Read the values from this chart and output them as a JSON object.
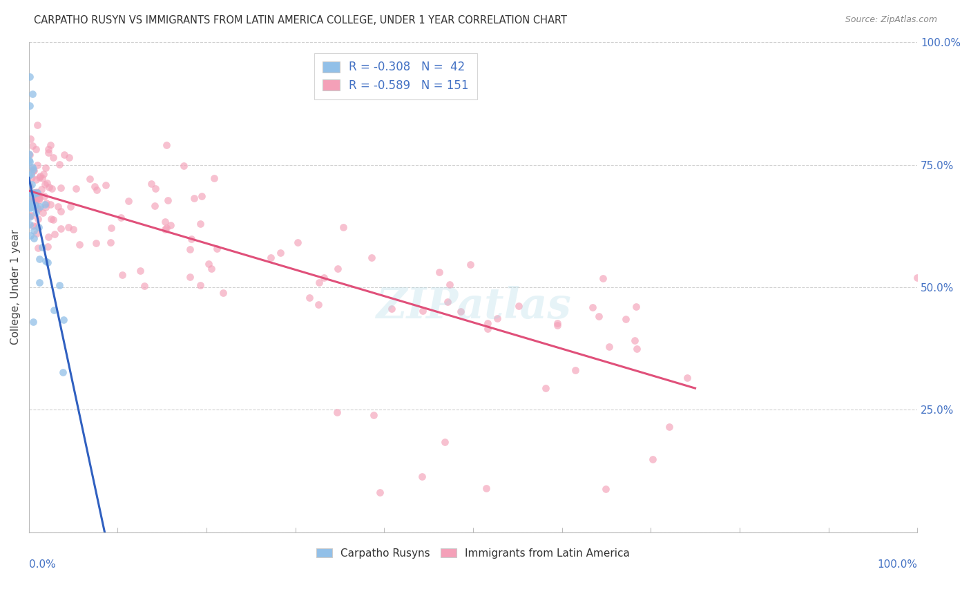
{
  "title": "CARPATHO RUSYN VS IMMIGRANTS FROM LATIN AMERICA COLLEGE, UNDER 1 YEAR CORRELATION CHART",
  "source": "Source: ZipAtlas.com",
  "ylabel": "College, Under 1 year",
  "legend_r1": "R = -0.308",
  "legend_n1": "N =  42",
  "legend_r2": "R = -0.589",
  "legend_n2": "N = 151",
  "color_blue": "#92C0E8",
  "color_pink": "#F4A0B8",
  "trend_blue": "#3060C0",
  "trend_pink": "#E0507A",
  "trend_dashed": "#90B8E8",
  "watermark": "ZIPatlas",
  "blue_intercept": 0.72,
  "blue_slope": -8.5,
  "pink_intercept": 0.7,
  "pink_slope": -0.47
}
